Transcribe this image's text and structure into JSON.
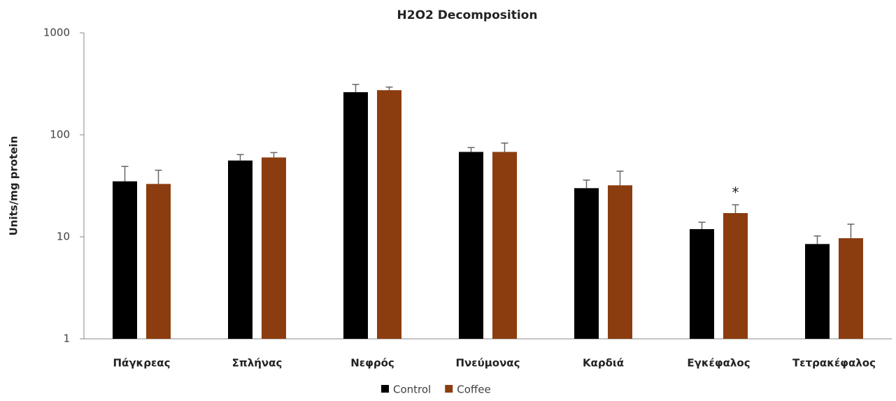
{
  "chart_data": {
    "type": "bar",
    "title": "H2O2 Decomposition",
    "y_label": "Units/mg protein",
    "log_scale": true,
    "categories": [
      "Πάγκρεας",
      "Σπλήνας",
      "Νεφρός",
      "Πνεύμονας",
      "Καρδιά",
      "Εγκέφαλος",
      "Τετρακέφαλος"
    ],
    "series": [
      {
        "name": "Control",
        "color": "#000000",
        "values": [
          35,
          56,
          262,
          68,
          30,
          11.9,
          8.5
        ],
        "errors": [
          14,
          8,
          50,
          7,
          6,
          2,
          1.7
        ]
      },
      {
        "name": "Coffee",
        "color": "#8b3d10",
        "values": [
          33,
          60,
          274,
          68,
          32,
          17.1,
          9.7
        ],
        "errors": [
          12,
          7,
          20,
          15,
          12,
          3.5,
          3.6
        ]
      }
    ],
    "annotations": [
      {
        "text": "*",
        "series": 1,
        "index": 5
      }
    ],
    "ylim": [
      1,
      1000
    ],
    "yticks": [
      1,
      10,
      100,
      1000
    ],
    "grid": false,
    "legend": "bottom"
  }
}
